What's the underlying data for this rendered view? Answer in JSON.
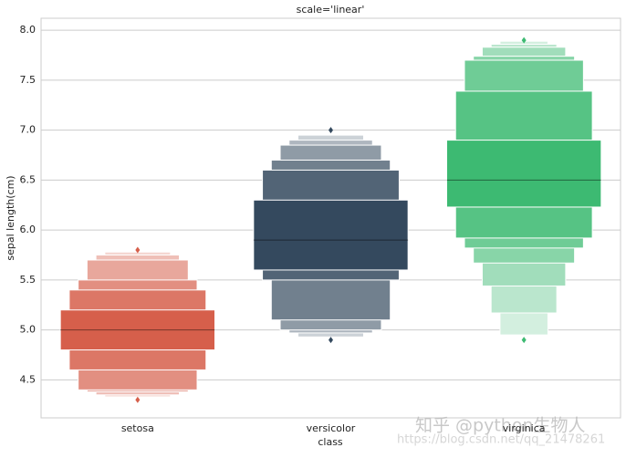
{
  "chart_data": {
    "type": "boxen",
    "title": "scale='linear'",
    "xlabel": "class",
    "ylabel": "sepal length(cm)",
    "categories": [
      "setosa",
      "versicolor",
      "virginica"
    ],
    "colors": [
      "#d65f4b",
      "#34495e",
      "#3dba72"
    ],
    "boxes": [
      {
        "median": 5.0,
        "levels": [
          [
            4.8,
            5.2
          ],
          [
            4.6,
            5.4
          ],
          [
            4.4,
            5.5
          ],
          [
            4.38,
            5.7
          ],
          [
            4.35,
            5.75
          ],
          [
            4.33,
            5.78
          ]
        ],
        "outliers": [
          5.8,
          4.3
        ]
      },
      {
        "median": 5.9,
        "levels": [
          [
            5.6,
            6.3
          ],
          [
            5.5,
            6.6
          ],
          [
            5.1,
            6.7
          ],
          [
            5.0,
            6.85
          ],
          [
            4.97,
            6.9
          ],
          [
            4.93,
            6.95
          ]
        ],
        "outliers": [
          7.0,
          4.9
        ]
      },
      {
        "median": 6.5,
        "levels": [
          [
            6.23,
            6.9
          ],
          [
            5.92,
            7.39
          ],
          [
            5.82,
            7.7
          ],
          [
            5.67,
            7.74
          ],
          [
            5.44,
            7.83
          ],
          [
            5.17,
            7.86
          ],
          [
            4.95,
            7.89
          ]
        ],
        "outliers": [
          7.9,
          4.9
        ]
      }
    ],
    "ylim": [
      4.12,
      8.12
    ],
    "yticks": [
      4.5,
      {
        "value": 5,
        "label": "5.0"
      },
      5.5,
      {
        "value": 6,
        "label": "6.0"
      },
      6.5,
      {
        "value": 7,
        "label": "7.0"
      },
      7.5,
      {
        "value": 8,
        "label": "8.0"
      }
    ],
    "grid": true,
    "watermark": "知乎 @python生物人",
    "watermark_url": "https://blog.csdn.net/qq_21478261"
  }
}
